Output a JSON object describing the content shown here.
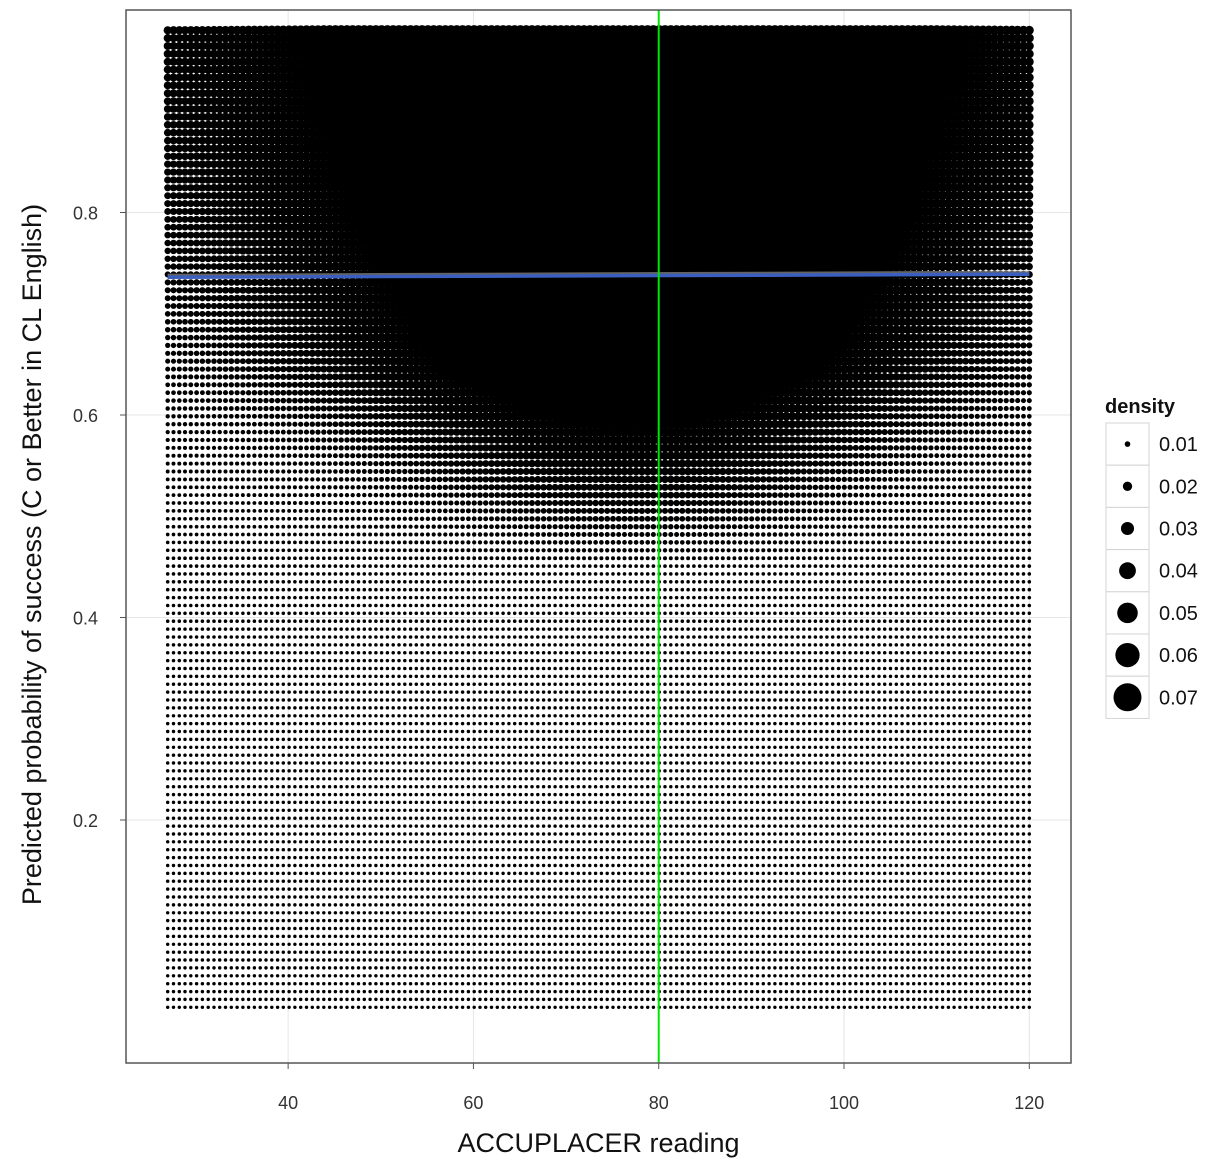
{
  "chart_data": {
    "type": "scatter",
    "title": "",
    "xlabel": "ACCUPLACER reading",
    "ylabel": "Predicted probability of success (C or Better in CL English)",
    "xlim": [
      22.5,
      124.5
    ],
    "ylim": [
      -0.04,
      1.0
    ],
    "x_ticks": [
      40,
      60,
      80,
      100,
      120
    ],
    "y_ticks": [
      0.2,
      0.4,
      0.6,
      0.8
    ],
    "x_tick_labels": [
      "40",
      "60",
      "80",
      "100",
      "120"
    ],
    "y_tick_labels": [
      "0.2",
      "0.4",
      "0.6",
      "0.8"
    ],
    "grid": true,
    "point_grid": {
      "x_range": [
        27,
        120
      ],
      "y_range": [
        0.015,
        0.98
      ],
      "description": "dense lattice of points sized by 2D density; densest region roughly x 45-105, y 0.55-0.98"
    },
    "fit_line": {
      "x": [
        27,
        120
      ],
      "y": [
        0.736,
        0.739
      ],
      "color": "#3b5fc0"
    },
    "vline": {
      "x": 80,
      "color": "#00e600"
    },
    "legend": {
      "title": "density",
      "position": "right",
      "entries": [
        {
          "label": "0.01",
          "value": 0.01
        },
        {
          "label": "0.02",
          "value": 0.02
        },
        {
          "label": "0.03",
          "value": 0.03
        },
        {
          "label": "0.04",
          "value": 0.04
        },
        {
          "label": "0.05",
          "value": 0.05
        },
        {
          "label": "0.06",
          "value": 0.06
        },
        {
          "label": "0.07",
          "value": 0.07
        }
      ]
    }
  }
}
